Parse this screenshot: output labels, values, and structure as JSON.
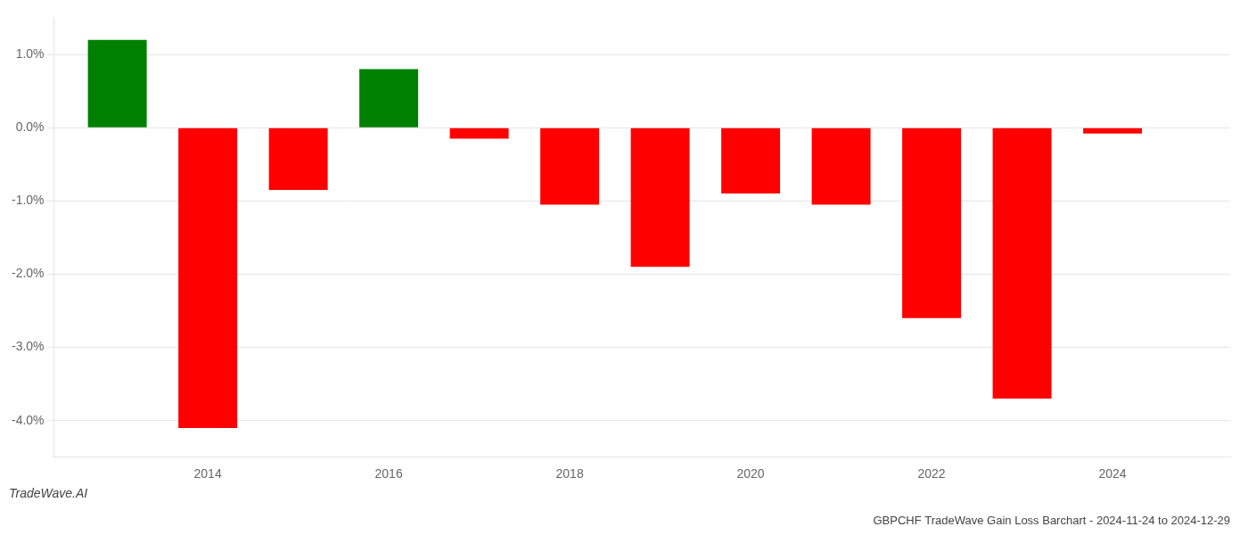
{
  "chart_data": {
    "type": "bar",
    "title": "GBPCHF TradeWave Gain Loss Barchart - 2024-11-24 to 2024-12-29",
    "annotations": [
      {
        "text": "TradeWave.AI"
      }
    ],
    "x": [
      2013,
      2014,
      2015,
      2016,
      2017,
      2018,
      2019,
      2020,
      2021,
      2022,
      2023,
      2024
    ],
    "values": [
      1.2,
      -4.1,
      -0.85,
      0.8,
      -0.15,
      -1.05,
      -1.9,
      -0.9,
      -1.05,
      -2.6,
      -3.7,
      -0.08
    ],
    "colors": [
      "#008000",
      "#ff0000",
      "#ff0000",
      "#008000",
      "#ff0000",
      "#ff0000",
      "#ff0000",
      "#ff0000",
      "#ff0000",
      "#ff0000",
      "#ff0000",
      "#ff0000"
    ],
    "xlim": [
      2012.3,
      2025.3
    ],
    "xticks": [
      2014,
      2016,
      2018,
      2020,
      2022,
      2024
    ],
    "ylim": [
      -4.5,
      1.5
    ],
    "yticks": [
      {
        "value": -4.0,
        "label": "-4.0%"
      },
      {
        "value": -3.0,
        "label": "-3.0%"
      },
      {
        "value": -2.0,
        "label": "-2.0%"
      },
      {
        "value": -1.0,
        "label": "-1.0%"
      },
      {
        "value": 0.0,
        "label": "0.0%"
      },
      {
        "value": 1.0,
        "label": "1.0%"
      }
    ],
    "grid": true
  }
}
